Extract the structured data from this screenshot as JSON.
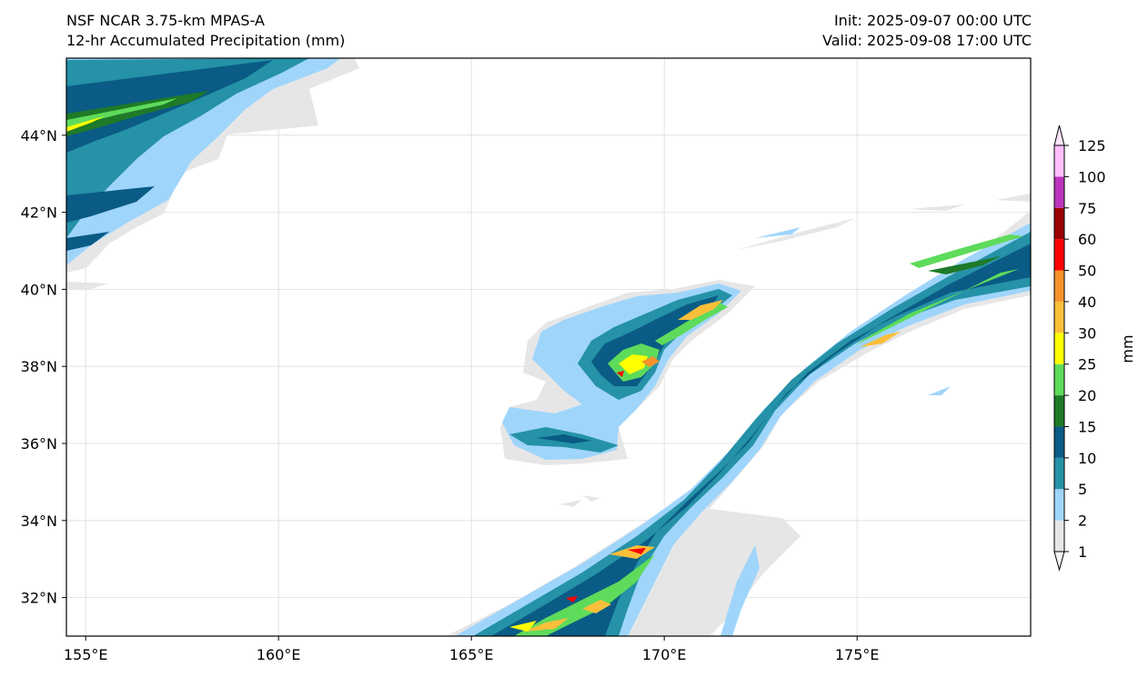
{
  "header": {
    "left_line1": "NSF NCAR 3.75-km MPAS-A",
    "left_line2": "12-hr Accumulated Precipitation (mm)",
    "right_line1": "Init: 2025-09-07 00:00 UTC",
    "right_line2": "Valid: 2025-09-08 17:00 UTC"
  },
  "map": {
    "lon_range": [
      154.5,
      179.5
    ],
    "lat_range": [
      31.0,
      46.0
    ],
    "lon_ticks": [
      {
        "value": 155,
        "label": "155°E"
      },
      {
        "value": 160,
        "label": "160°E"
      },
      {
        "value": 165,
        "label": "165°E"
      },
      {
        "value": 170,
        "label": "170°E"
      },
      {
        "value": 175,
        "label": "175°E"
      }
    ],
    "lat_ticks": [
      {
        "value": 32,
        "label": "32°N"
      },
      {
        "value": 34,
        "label": "34°N"
      },
      {
        "value": 36,
        "label": "36°N"
      },
      {
        "value": 38,
        "label": "38°N"
      },
      {
        "value": 40,
        "label": "40°N"
      },
      {
        "value": 42,
        "label": "42°N"
      },
      {
        "value": 44,
        "label": "44°N"
      }
    ],
    "gridlines": true
  },
  "colorbar": {
    "unit_label": "mm",
    "levels": [
      {
        "value": "1",
        "color": "#e6e6e6"
      },
      {
        "value": "2",
        "color": "#9fd5fb"
      },
      {
        "value": "5",
        "color": "#2592a7"
      },
      {
        "value": "10",
        "color": "#0a5b85"
      },
      {
        "value": "15",
        "color": "#1e7a27"
      },
      {
        "value": "20",
        "color": "#5edb5b"
      },
      {
        "value": "25",
        "color": "#ffff00"
      },
      {
        "value": "30",
        "color": "#fbbf3a"
      },
      {
        "value": "40",
        "color": "#f7922a"
      },
      {
        "value": "50",
        "color": "#ff0000"
      },
      {
        "value": "60",
        "color": "#9a0000"
      },
      {
        "value": "75",
        "color": "#bb33bb"
      },
      {
        "value": "100",
        "color": "#ffbfff"
      },
      {
        "value": "125",
        "color": ""
      }
    ],
    "under_color": "#f4f4f4",
    "over_color": "#ffe6ff"
  }
}
